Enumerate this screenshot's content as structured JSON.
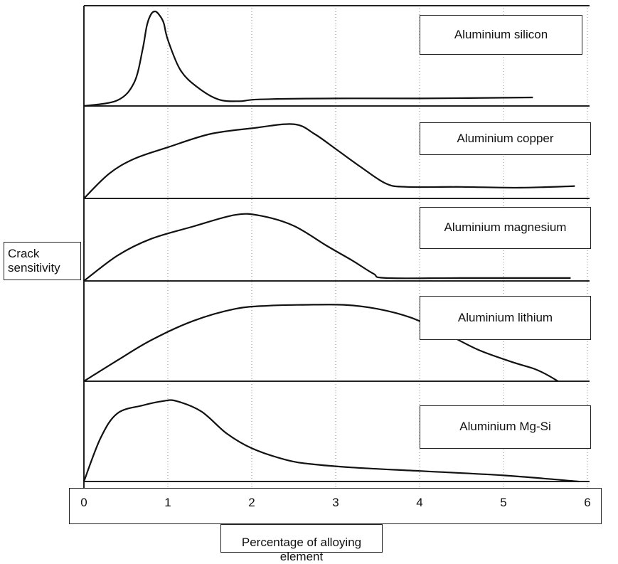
{
  "chart_data": {
    "type": "line",
    "ylabel_lines": [
      "Crack",
      "sensitivity"
    ],
    "xlabel": "Percentage of alloying element",
    "xlim": [
      0,
      6
    ],
    "x_ticks": [
      "0",
      "1",
      "2",
      "3",
      "4",
      "5",
      "6"
    ],
    "grid": "vertical dotted at each integer",
    "y_scale": "relative crack sensitivity, 0 = baseline, 1 = maximum panel height",
    "panels": [
      {
        "name": "Aluminium silicon",
        "points": [
          [
            0,
            0
          ],
          [
            0.4,
            0.06
          ],
          [
            0.6,
            0.25
          ],
          [
            0.7,
            0.6
          ],
          [
            0.75,
            0.85
          ],
          [
            0.8,
            0.97
          ],
          [
            0.85,
            1.0
          ],
          [
            0.9,
            0.96
          ],
          [
            0.95,
            0.88
          ],
          [
            1.0,
            0.7
          ],
          [
            1.15,
            0.38
          ],
          [
            1.35,
            0.2
          ],
          [
            1.6,
            0.07
          ],
          [
            1.85,
            0.05
          ],
          [
            2.1,
            0.07
          ],
          [
            3.0,
            0.08
          ],
          [
            4.0,
            0.08
          ],
          [
            5.35,
            0.09
          ]
        ]
      },
      {
        "name": "Aluminium copper",
        "points": [
          [
            0,
            0
          ],
          [
            0.3,
            0.3
          ],
          [
            0.6,
            0.48
          ],
          [
            1.0,
            0.62
          ],
          [
            1.5,
            0.78
          ],
          [
            2.0,
            0.85
          ],
          [
            2.5,
            0.9
          ],
          [
            2.75,
            0.78
          ],
          [
            3.0,
            0.6
          ],
          [
            3.3,
            0.38
          ],
          [
            3.6,
            0.18
          ],
          [
            3.85,
            0.14
          ],
          [
            4.5,
            0.14
          ],
          [
            5.2,
            0.13
          ],
          [
            5.85,
            0.15
          ]
        ]
      },
      {
        "name": "Aluminium magnesium",
        "points": [
          [
            0,
            0
          ],
          [
            0.4,
            0.35
          ],
          [
            0.8,
            0.58
          ],
          [
            1.3,
            0.75
          ],
          [
            1.8,
            0.91
          ],
          [
            2.1,
            0.9
          ],
          [
            2.5,
            0.76
          ],
          [
            2.9,
            0.48
          ],
          [
            3.2,
            0.28
          ],
          [
            3.45,
            0.1
          ],
          [
            3.6,
            0.04
          ],
          [
            4.5,
            0.04
          ],
          [
            5.8,
            0.04
          ]
        ]
      },
      {
        "name": "Aluminium lithium",
        "points": [
          [
            0,
            0
          ],
          [
            0.4,
            0.26
          ],
          [
            0.8,
            0.51
          ],
          [
            1.3,
            0.75
          ],
          [
            1.8,
            0.9
          ],
          [
            2.2,
            0.94
          ],
          [
            2.6,
            0.95
          ],
          [
            3.1,
            0.95
          ],
          [
            3.5,
            0.9
          ],
          [
            3.9,
            0.79
          ],
          [
            4.3,
            0.6
          ],
          [
            4.7,
            0.39
          ],
          [
            5.1,
            0.24
          ],
          [
            5.35,
            0.16
          ],
          [
            5.5,
            0.09
          ],
          [
            5.65,
            0.0
          ]
        ]
      },
      {
        "name": "Aluminium Mg-Si",
        "points": [
          [
            0,
            0
          ],
          [
            0.2,
            0.5
          ],
          [
            0.4,
            0.78
          ],
          [
            0.7,
            0.87
          ],
          [
            0.95,
            0.92
          ],
          [
            1.1,
            0.92
          ],
          [
            1.4,
            0.8
          ],
          [
            1.7,
            0.55
          ],
          [
            2.0,
            0.38
          ],
          [
            2.4,
            0.25
          ],
          [
            2.7,
            0.2
          ],
          [
            3.2,
            0.16
          ],
          [
            4.0,
            0.12
          ],
          [
            5.0,
            0.07
          ],
          [
            5.9,
            0.0
          ]
        ]
      }
    ]
  }
}
